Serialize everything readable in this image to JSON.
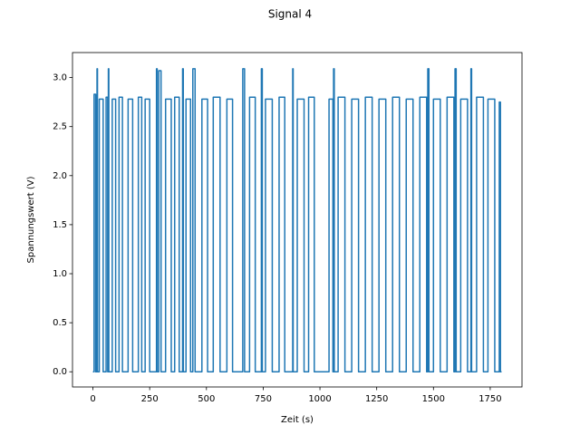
{
  "chart_data": {
    "type": "line",
    "title": "Signal 4",
    "xlabel": "Zeit (s)",
    "ylabel": "Spannungswert (V)",
    "x": [
      0,
      5,
      5,
      12,
      12,
      18,
      18,
      20,
      20,
      28,
      28,
      45,
      45,
      58,
      58,
      65,
      65,
      68,
      68,
      70,
      70,
      85,
      85,
      100,
      100,
      115,
      115,
      130,
      130,
      155,
      155,
      175,
      175,
      200,
      200,
      215,
      215,
      230,
      230,
      250,
      250,
      280,
      280,
      283,
      283,
      290,
      290,
      300,
      300,
      320,
      320,
      345,
      345,
      360,
      360,
      380,
      380,
      395,
      395,
      398,
      398,
      410,
      410,
      430,
      430,
      440,
      440,
      450,
      450,
      480,
      480,
      505,
      505,
      530,
      530,
      560,
      560,
      590,
      590,
      615,
      615,
      660,
      660,
      668,
      668,
      690,
      690,
      715,
      715,
      742,
      742,
      746,
      746,
      760,
      760,
      790,
      790,
      820,
      820,
      845,
      845,
      880,
      880,
      882,
      882,
      900,
      900,
      930,
      930,
      950,
      950,
      975,
      975,
      1040,
      1040,
      1057,
      1057,
      1060,
      1060,
      1063,
      1063,
      1080,
      1080,
      1110,
      1110,
      1140,
      1140,
      1170,
      1170,
      1200,
      1200,
      1230,
      1230,
      1260,
      1260,
      1290,
      1290,
      1320,
      1320,
      1350,
      1350,
      1380,
      1380,
      1410,
      1410,
      1440,
      1440,
      1470,
      1470,
      1475,
      1475,
      1480,
      1480,
      1500,
      1500,
      1530,
      1530,
      1560,
      1560,
      1590,
      1590,
      1595,
      1595,
      1600,
      1600,
      1620,
      1620,
      1650,
      1650,
      1665,
      1665,
      1668,
      1668,
      1690,
      1690,
      1720,
      1720,
      1740,
      1740,
      1770,
      1770,
      1790,
      1790,
      1795,
      1795,
      1800
    ],
    "series": [
      {
        "color": "#1f77b4",
        "values": [
          0,
          0,
          2.83,
          2.83,
          0,
          0,
          3.09,
          3.09,
          0,
          0,
          2.78,
          2.78,
          0,
          0,
          2.8,
          2.8,
          0,
          0,
          3.09,
          3.09,
          0,
          0,
          2.78,
          2.78,
          0,
          0,
          2.8,
          2.8,
          0,
          0,
          2.78,
          2.78,
          0,
          0,
          2.8,
          2.8,
          0,
          0,
          2.78,
          2.78,
          0,
          0,
          3.09,
          3.09,
          0,
          0,
          3.07,
          3.07,
          0,
          0,
          2.78,
          2.78,
          0,
          0,
          2.8,
          2.8,
          0,
          0,
          3.09,
          3.09,
          0,
          0,
          2.78,
          2.78,
          0,
          0,
          3.09,
          3.09,
          0,
          0,
          2.78,
          2.78,
          0,
          0,
          2.8,
          2.8,
          0,
          0,
          2.78,
          2.78,
          0,
          0,
          3.09,
          3.09,
          0,
          0,
          2.8,
          2.8,
          0,
          0,
          3.09,
          3.09,
          0,
          0,
          2.78,
          2.78,
          0,
          0,
          2.8,
          2.8,
          0,
          0,
          3.09,
          3.09,
          0,
          0,
          2.78,
          2.78,
          0,
          0,
          2.8,
          2.8,
          0,
          0,
          2.78,
          2.78,
          0,
          0,
          3.09,
          3.09,
          0,
          0,
          2.8,
          2.8,
          0,
          0,
          2.78,
          2.78,
          0,
          0,
          2.8,
          2.8,
          0,
          0,
          2.78,
          2.78,
          0,
          0,
          2.8,
          2.8,
          0,
          0,
          2.78,
          2.78,
          0,
          0,
          2.8,
          2.8,
          0,
          0,
          3.09,
          3.09,
          0,
          0,
          2.78,
          2.78,
          0,
          0,
          2.8,
          2.8,
          0,
          0,
          3.09,
          3.09,
          0,
          0,
          2.78,
          2.78,
          0,
          0,
          3.09,
          3.09,
          0,
          0,
          2.8,
          2.8,
          0,
          0,
          2.78,
          2.78,
          0,
          0,
          2.75,
          2.75,
          0,
          0
        ]
      }
    ],
    "xlim": [
      -90,
      1890
    ],
    "ylim": [
      -0.155,
      3.255
    ],
    "xticks": [
      0,
      250,
      500,
      750,
      1000,
      1250,
      1500,
      1750
    ],
    "yticks": [
      {
        "value": 0,
        "label": "0.0"
      },
      {
        "value": 0.5,
        "label": "0.5"
      },
      {
        "value": 1,
        "label": "1.0"
      },
      {
        "value": 1.5,
        "label": "1.5"
      },
      {
        "value": 2,
        "label": "2.0"
      },
      {
        "value": 2.5,
        "label": "2.5"
      },
      {
        "value": 3,
        "label": "3.0"
      }
    ]
  }
}
